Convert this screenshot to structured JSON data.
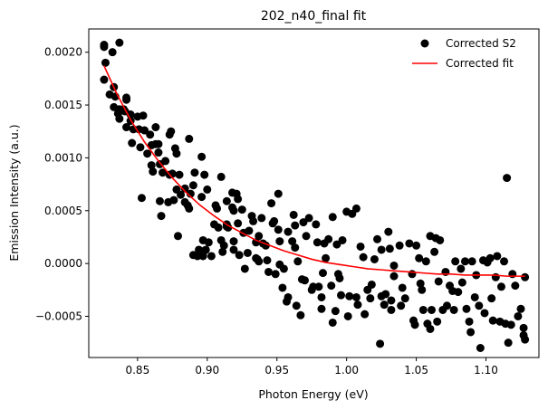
{
  "chart_data": {
    "type": "scatter",
    "title": "202_n40_final fit",
    "xlabel": "Photon Energy (eV)",
    "ylabel": "Emission Intensity (a.u.)",
    "xlim": [
      0.815,
      1.138
    ],
    "ylim": [
      -0.00089,
      0.00222
    ],
    "xticks": [
      {
        "value": 0.85,
        "label": "0.85"
      },
      {
        "value": 0.9,
        "label": "0.90"
      },
      {
        "value": 0.95,
        "label": "0.95"
      },
      {
        "value": 1.0,
        "label": "1.00"
      },
      {
        "value": 1.05,
        "label": "1.05"
      },
      {
        "value": 1.1,
        "label": "1.10"
      }
    ],
    "yticks": [
      {
        "value": -0.0005,
        "label": "−0.0005"
      },
      {
        "value": 0.0,
        "label": "0.0000"
      },
      {
        "value": 0.0005,
        "label": "0.0005"
      },
      {
        "value": 0.001,
        "label": "0.0010"
      },
      {
        "value": 0.0015,
        "label": "0.0015"
      },
      {
        "value": 0.002,
        "label": "0.0020"
      }
    ],
    "grid": false,
    "legend_position": "top-right",
    "series": [
      {
        "name": "Corrected S2",
        "kind": "scatter",
        "color": "#000000",
        "points": [
          [
            0.826,
            0.00207
          ],
          [
            0.826,
            0.00205
          ],
          [
            0.826,
            0.00174
          ],
          [
            0.827,
            0.0019
          ],
          [
            0.83,
            0.0016
          ],
          [
            0.832,
            0.002
          ],
          [
            0.833,
            0.00167
          ],
          [
            0.833,
            0.00148
          ],
          [
            0.834,
            0.00158
          ],
          [
            0.836,
            0.00142
          ],
          [
            0.837,
            0.00209
          ],
          [
            0.837,
            0.00146
          ],
          [
            0.837,
            0.00137
          ],
          [
            0.84,
            0.00146
          ],
          [
            0.841,
            0.00144
          ],
          [
            0.842,
            0.00157
          ],
          [
            0.842,
            0.00155
          ],
          [
            0.842,
            0.00129
          ],
          [
            0.845,
            0.00135
          ],
          [
            0.845,
            0.00141
          ],
          [
            0.846,
            0.00114
          ],
          [
            0.847,
            0.00127
          ],
          [
            0.85,
            0.00139
          ],
          [
            0.851,
            0.00127
          ],
          [
            0.852,
            0.0011
          ],
          [
            0.853,
            0.00062
          ],
          [
            0.854,
            0.0014
          ],
          [
            0.855,
            0.00126
          ],
          [
            0.857,
            0.00104
          ],
          [
            0.859,
            0.00122
          ],
          [
            0.86,
            0.00112
          ],
          [
            0.86,
            0.00093
          ],
          [
            0.861,
            0.00087
          ],
          [
            0.863,
            0.00113
          ],
          [
            0.863,
            0.00129
          ],
          [
            0.865,
            0.00113
          ],
          [
            0.865,
            0.00105
          ],
          [
            0.866,
            0.00094
          ],
          [
            0.866,
            0.00059
          ],
          [
            0.867,
            0.00045
          ],
          [
            0.868,
            0.00086
          ],
          [
            0.87,
            0.00097
          ],
          [
            0.872,
            0.00058
          ],
          [
            0.873,
            0.00084
          ],
          [
            0.873,
            0.00122
          ],
          [
            0.874,
            0.00125
          ],
          [
            0.875,
            0.00085
          ],
          [
            0.876,
            0.0006
          ],
          [
            0.877,
            0.00109
          ],
          [
            0.878,
            0.00104
          ],
          [
            0.878,
            0.0007
          ],
          [
            0.879,
            0.00026
          ],
          [
            0.88,
            0.00084
          ],
          [
            0.881,
            0.00065
          ],
          [
            0.884,
            0.00071
          ],
          [
            0.884,
            0.00058
          ],
          [
            0.886,
            0.00055
          ],
          [
            0.887,
            0.00118
          ],
          [
            0.887,
            0.00052
          ],
          [
            0.888,
            0.00066
          ],
          [
            0.89,
            0.00074
          ],
          [
            0.89,
            8e-05
          ],
          [
            0.891,
            0.00086
          ],
          [
            0.893,
            7e-05
          ],
          [
            0.894,
            0.00013
          ],
          [
            0.896,
            0.00063
          ],
          [
            0.896,
            0.00101
          ],
          [
            0.897,
            0.00022
          ],
          [
            0.898,
            0.00084
          ],
          [
            0.897,
            7e-05
          ],
          [
            0.898,
            0.00012
          ],
          [
            0.899,
            0.00013
          ],
          [
            0.9,
            0.0007
          ],
          [
            0.901,
            0.0002
          ],
          [
            0.903,
            7e-05
          ],
          [
            0.905,
            0.00037
          ],
          [
            0.906,
            0.00055
          ],
          [
            0.907,
            0.00052
          ],
          [
            0.908,
            0.00034
          ],
          [
            0.91,
            0.00082
          ],
          [
            0.91,
            0.00022
          ],
          [
            0.911,
            0.00011
          ],
          [
            0.912,
            0.00017
          ],
          [
            0.914,
            0.00059
          ],
          [
            0.914,
            0.00037
          ],
          [
            0.914,
            0.00035
          ],
          [
            0.915,
            0.00034
          ],
          [
            0.918,
            0.00067
          ],
          [
            0.918,
            0.00053
          ],
          [
            0.919,
            0.0005
          ],
          [
            0.919,
            0.00021
          ],
          [
            0.919,
            0.00013
          ],
          [
            0.921,
            0.00066
          ],
          [
            0.922,
            0.00061
          ],
          [
            0.922,
            0.00038
          ],
          [
            0.923,
            8e-05
          ],
          [
            0.925,
            0.00051
          ],
          [
            0.926,
            0.00029
          ],
          [
            0.927,
            -5e-05
          ],
          [
            0.929,
            0.0001
          ],
          [
            0.93,
            0.00031
          ],
          [
            0.932,
            0.00045
          ],
          [
            0.933,
            0.0004
          ],
          [
            0.935,
            5e-05
          ],
          [
            0.935,
            0.0002
          ],
          [
            0.936,
            4e-05
          ],
          [
            0.937,
            0.00026
          ],
          [
            0.937,
            2e-05
          ],
          [
            0.939,
            0.00043
          ],
          [
            0.94,
            0.00019
          ],
          [
            0.942,
            0.00017
          ],
          [
            0.943,
            3e-05
          ],
          [
            0.944,
            -8e-05
          ],
          [
            0.946,
            0.00057
          ],
          [
            0.947,
            0.00038
          ],
          [
            0.948,
            0.0004
          ],
          [
            0.949,
            -0.0001
          ],
          [
            0.951,
            0.00066
          ],
          [
            0.951,
            0.00032
          ],
          [
            0.952,
            0.00021
          ],
          [
            0.952,
            -1e-05
          ],
          [
            0.954,
            -0.00023
          ],
          [
            0.955,
            -5e-05
          ],
          [
            0.957,
            -0.00036
          ],
          [
            0.958,
            0.0003
          ],
          [
            0.958,
            -0.00032
          ],
          [
            0.961,
            0.00021
          ],
          [
            0.962,
            0.00046
          ],
          [
            0.963,
            0.00036
          ],
          [
            0.963,
            0.00015
          ],
          [
            0.964,
            -0.0004
          ],
          [
            0.965,
            2e-05
          ],
          [
            0.967,
            -0.00049
          ],
          [
            0.968,
            -0.00015
          ],
          [
            0.969,
            0.00039
          ],
          [
            0.97,
            -0.00016
          ],
          [
            0.971,
            0.00026
          ],
          [
            0.973,
            0.00043
          ],
          [
            0.975,
            -0.00025
          ],
          [
            0.976,
            -0.00022
          ],
          [
            0.978,
            0.00037
          ],
          [
            0.979,
            0.0002
          ],
          [
            0.98,
            -0.00022
          ],
          [
            0.982,
            -0.00032
          ],
          [
            0.982,
            -0.00043
          ],
          [
            0.983,
            -9e-05
          ],
          [
            0.984,
            0.00019
          ],
          [
            0.985,
            5e-05
          ],
          [
            0.987,
            0.00023
          ],
          [
            0.989,
            -0.00021
          ],
          [
            0.99,
            -0.00056
          ],
          [
            0.99,
            0.00044
          ],
          [
            0.992,
            -0.00045
          ],
          [
            0.993,
            0.00018
          ],
          [
            0.994,
            -0.0001
          ],
          [
            0.995,
            -0.00014
          ],
          [
            0.996,
            -0.0003
          ],
          [
            0.997,
            0.00022
          ],
          [
            1.0,
            0.00049
          ],
          [
            1.001,
            -0.0005
          ],
          [
            1.002,
            -0.00031
          ],
          [
            1.004,
            0.00047
          ],
          [
            1.007,
            0.00052
          ],
          [
            1.007,
            -0.00032
          ],
          [
            1.008,
            -0.00039
          ],
          [
            1.01,
            0.00016
          ],
          [
            1.012,
            6e-05
          ],
          [
            1.013,
            -0.00048
          ],
          [
            1.015,
            -0.00025
          ],
          [
            1.017,
            -0.00033
          ],
          [
            1.018,
            -0.0002
          ],
          [
            1.02,
            4e-05
          ],
          [
            1.022,
            0.00023
          ],
          [
            1.024,
            -0.00076
          ],
          [
            1.025,
            0.00013
          ],
          [
            1.025,
            -0.00031
          ],
          [
            1.027,
            -0.00039
          ],
          [
            1.028,
            -0.00029
          ],
          [
            1.03,
            0.0003
          ],
          [
            1.031,
            0.00014
          ],
          [
            1.032,
            -0.00035
          ],
          [
            1.032,
            -0.00044
          ],
          [
            1.034,
            -0.00012
          ],
          [
            1.034,
            -2e-05
          ],
          [
            1.038,
            0.00017
          ],
          [
            1.039,
            -0.0004
          ],
          [
            1.04,
            -0.00023
          ],
          [
            1.042,
            -0.00033
          ],
          [
            1.045,
            0.00019
          ],
          [
            1.047,
            -0.0001
          ],
          [
            1.048,
            -0.00054
          ],
          [
            1.049,
            -0.00058
          ],
          [
            1.05,
            0.00017
          ],
          [
            1.052,
            5e-05
          ],
          [
            1.053,
            -0.00019
          ],
          [
            1.054,
            -0.00025
          ],
          [
            1.055,
            -0.00044
          ],
          [
            1.057,
            2e-05
          ],
          [
            1.058,
            -0.00057
          ],
          [
            1.06,
            0.00026
          ],
          [
            1.06,
            -0.00062
          ],
          [
            1.061,
            -0.00044
          ],
          [
            1.063,
            0.00011
          ],
          [
            1.064,
            0.00024
          ],
          [
            1.065,
            -0.00055
          ],
          [
            1.066,
            -0.00017
          ],
          [
            1.067,
            0.00022
          ],
          [
            1.069,
            -0.00044
          ],
          [
            1.071,
            -8e-05
          ],
          [
            1.072,
            -0.0004
          ],
          [
            1.074,
            -0.00021
          ],
          [
            1.076,
            -0.00026
          ],
          [
            1.077,
            -0.00044
          ],
          [
            1.078,
            2e-05
          ],
          [
            1.08,
            -0.00027
          ],
          [
            1.082,
            -5e-05
          ],
          [
            1.083,
            -0.00018
          ],
          [
            1.085,
            2e-05
          ],
          [
            1.086,
            -0.00043
          ],
          [
            1.088,
            -0.00055
          ],
          [
            1.089,
            -0.00065
          ],
          [
            1.09,
            2e-05
          ],
          [
            1.092,
            -0.00032
          ],
          [
            1.093,
            -0.00011
          ],
          [
            1.095,
            -0.0004
          ],
          [
            1.096,
            -0.0008
          ],
          [
            1.098,
            3e-05
          ],
          [
            1.099,
            -0.00047
          ],
          [
            1.101,
            1e-05
          ],
          [
            1.103,
            5e-05
          ],
          [
            1.104,
            -0.00033
          ],
          [
            1.105,
            -0.00054
          ],
          [
            1.107,
            -0.00013
          ],
          [
            1.108,
            7e-05
          ],
          [
            1.11,
            -0.00055
          ],
          [
            1.111,
            -0.00022
          ],
          [
            1.113,
            2e-05
          ],
          [
            1.114,
            -0.00057
          ],
          [
            1.115,
            0.00081
          ],
          [
            1.116,
            -0.00075
          ],
          [
            1.118,
            -0.00058
          ],
          [
            1.119,
            -0.0001
          ],
          [
            1.121,
            -0.00021
          ],
          [
            1.123,
            -0.0005
          ],
          [
            1.125,
            -0.00043
          ],
          [
            1.127,
            -0.00061
          ],
          [
            1.127,
            -0.00068
          ],
          [
            1.128,
            -0.00072
          ],
          [
            1.128,
            -0.00013
          ]
        ]
      },
      {
        "name": "Corrected fit",
        "kind": "line",
        "color": "#ff0000",
        "x": [
          0.826,
          0.835,
          0.845,
          0.855,
          0.865,
          0.875,
          0.885,
          0.895,
          0.905,
          0.915,
          0.925,
          0.935,
          0.945,
          0.955,
          0.965,
          0.975,
          0.985,
          0.995,
          1.005,
          1.015,
          1.025,
          1.035,
          1.045,
          1.055,
          1.065,
          1.075,
          1.085,
          1.095,
          1.105,
          1.115,
          1.128
        ],
        "y": [
          0.00187,
          0.00161,
          0.00136,
          0.00115,
          0.00097,
          0.00081,
          0.00067,
          0.00055,
          0.00045,
          0.00036,
          0.00029,
          0.00022,
          0.00017,
          0.00012,
          8e-05,
          4e-05,
          1e-05,
          -1e-05,
          -3e-05,
          -5e-05,
          -6e-05,
          -7e-05,
          -8e-05,
          -9e-05,
          -0.0001,
          -0.0001,
          -0.00011,
          -0.00011,
          -0.00011,
          -0.00012,
          -0.00012
        ]
      }
    ]
  }
}
